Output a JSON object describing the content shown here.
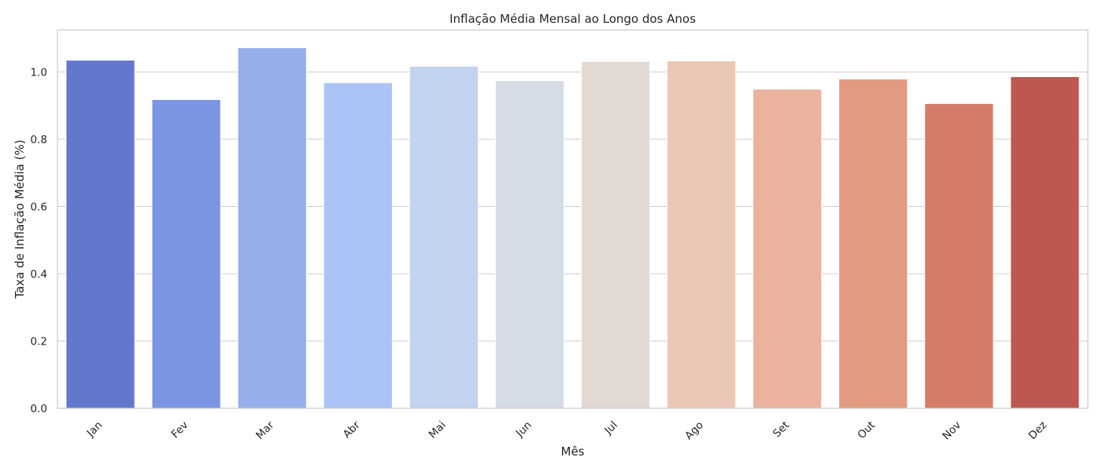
{
  "chart_data": {
    "type": "bar",
    "title": "Inflação Média Mensal ao Longo dos Anos",
    "xlabel": "Mês",
    "ylabel": "Taxa de Inflação Média (%)",
    "categories": [
      "Jan",
      "Fev",
      "Mar",
      "Abr",
      "Mai",
      "Jun",
      "Jul",
      "Ago",
      "Set",
      "Out",
      "Nov",
      "Dez"
    ],
    "values": [
      1.035,
      0.918,
      1.072,
      0.968,
      1.017,
      0.974,
      1.031,
      1.033,
      0.949,
      0.979,
      0.906,
      0.986
    ],
    "colors": [
      "#6178cc",
      "#7c95e3",
      "#94afec",
      "#abc3f5",
      "#c3d2ef",
      "#d4dce6",
      "#e3d9d3",
      "#ecc7b6",
      "#ebb39d",
      "#e29a80",
      "#d47c68",
      "#bd5750"
    ],
    "ylim": [
      0,
      1.125
    ],
    "yticks": [
      0.0,
      0.2,
      0.4,
      0.6,
      0.8,
      1.0
    ],
    "ytick_labels": [
      "0.0",
      "0.2",
      "0.4",
      "0.6",
      "0.8",
      "1.0"
    ],
    "grid": "horizontal",
    "legend": "none"
  }
}
